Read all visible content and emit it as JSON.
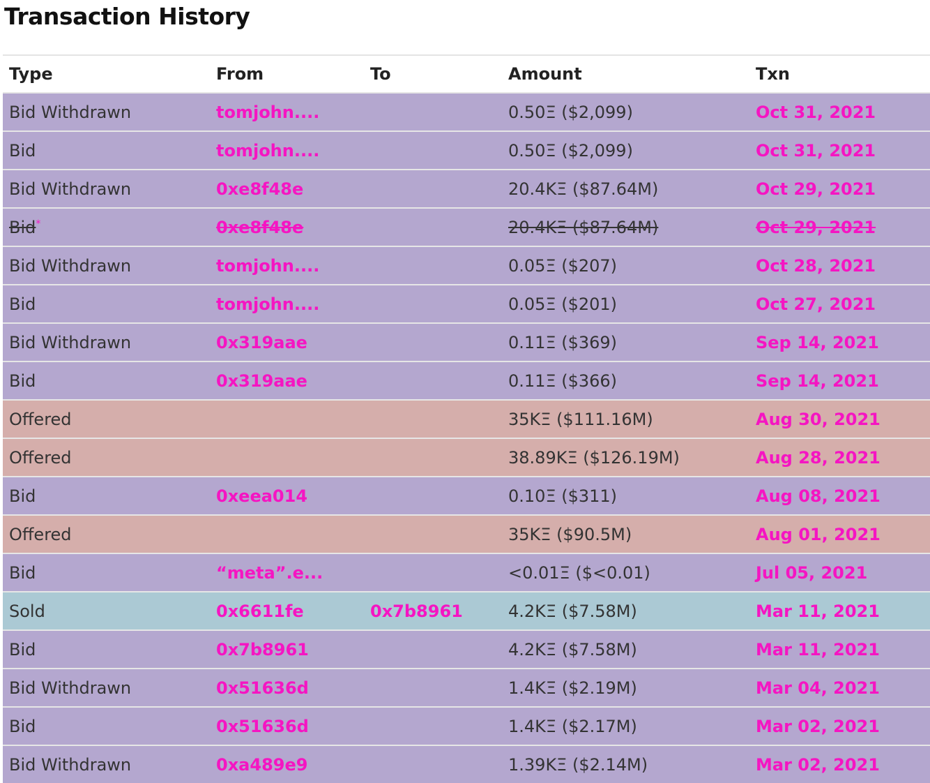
{
  "title": "Transaction History",
  "table": {
    "headers": [
      "Type",
      "From",
      "To",
      "Amount",
      "Txn"
    ],
    "rows": [
      {
        "type": "Bid Withdrawn",
        "from": "tomjohn....",
        "amount": "0.50Ξ ($2,099)",
        "txn": "Oct 31, 2021",
        "color": "#b4a7cf"
      },
      {
        "type": "Bid",
        "from": "tomjohn....",
        "amount": "0.50Ξ ($2,099)",
        "txn": "Oct 31, 2021",
        "color": "#b4a7cf"
      },
      {
        "type": "Bid Withdrawn",
        "from": "0xe8f48e",
        "amount": "20.4KΞ ($87.64M)",
        "txn": "Oct 29, 2021",
        "color": "#b4a7cf"
      },
      {
        "type": "Bid",
        "note": "*",
        "struck": true,
        "from": "0xe8f48e",
        "amount": "20.4KΞ ($87.64M)",
        "txn": "Oct 29, 2021",
        "color": "#b4a7cf"
      },
      {
        "type": "Bid Withdrawn",
        "from": "tomjohn....",
        "amount": "0.05Ξ ($207)",
        "txn": "Oct 28, 2021",
        "color": "#b4a7cf"
      },
      {
        "type": "Bid",
        "from": "tomjohn....",
        "amount": "0.05Ξ ($201)",
        "txn": "Oct 27, 2021",
        "color": "#b4a7cf"
      },
      {
        "type": "Bid Withdrawn",
        "from": "0x319aae",
        "amount": "0.11Ξ ($369)",
        "txn": "Sep 14, 2021",
        "color": "#b4a7cf"
      },
      {
        "type": "Bid",
        "from": "0x319aae",
        "amount": "0.11Ξ ($366)",
        "txn": "Sep 14, 2021",
        "color": "#b4a7cf"
      },
      {
        "type": "Offered",
        "amount": "35KΞ ($111.16M)",
        "txn": "Aug 30, 2021",
        "color": "#d5aeab"
      },
      {
        "type": "Offered",
        "amount": "38.89KΞ ($126.19M)",
        "txn": "Aug 28, 2021",
        "color": "#d5aeab"
      },
      {
        "type": "Bid",
        "from": "0xeea014",
        "amount": "0.10Ξ ($311)",
        "txn": "Aug 08, 2021",
        "color": "#b4a7cf"
      },
      {
        "type": "Offered",
        "amount": "35KΞ ($90.5M)",
        "txn": "Aug 01, 2021",
        "color": "#d5aeab"
      },
      {
        "type": "Bid",
        "from": "“meta”.e...",
        "amount": "<0.01Ξ ($<0.01)",
        "txn": "Jul 05, 2021",
        "color": "#b4a7cf"
      },
      {
        "type": "Sold",
        "from": "0x6611fe",
        "to": "0x7b8961",
        "amount": "4.2KΞ ($7.58M)",
        "txn": "Mar 11, 2021",
        "color": "#abc9d4"
      },
      {
        "type": "Bid",
        "from": "0x7b8961",
        "amount": "4.2KΞ ($7.58M)",
        "txn": "Mar 11, 2021",
        "color": "#b4a7cf"
      },
      {
        "type": "Bid Withdrawn",
        "from": "0x51636d",
        "amount": "1.4KΞ ($2.19M)",
        "txn": "Mar 04, 2021",
        "color": "#b4a7cf"
      },
      {
        "type": "Bid",
        "from": "0x51636d",
        "amount": "1.4KΞ ($2.17M)",
        "txn": "Mar 02, 2021",
        "color": "#b4a7cf"
      },
      {
        "type": "Bid Withdrawn",
        "from": "0xa489e9",
        "amount": "1.39KΞ ($2.14M)",
        "txn": "Mar 02, 2021",
        "color": "#b4a7cf"
      }
    ]
  }
}
